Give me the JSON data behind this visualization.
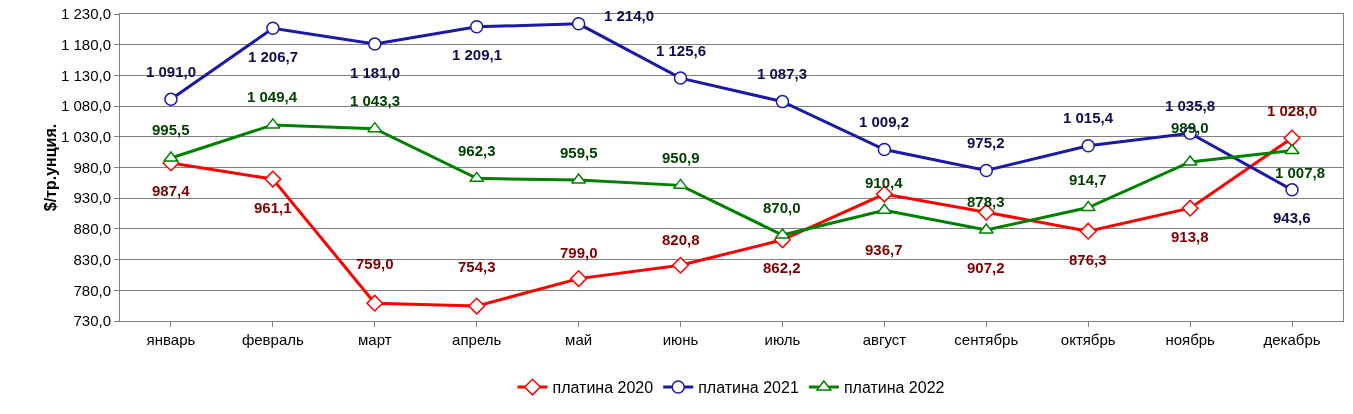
{
  "chart_data": {
    "type": "line",
    "ylabel": "$/тр.унция.",
    "categories": [
      "январь",
      "февраль",
      "март",
      "апрель",
      "май",
      "июнь",
      "июль",
      "август",
      "сентябрь",
      "октябрь",
      "ноябрь",
      "декабрь"
    ],
    "series": [
      {
        "name": "платина 2020",
        "color": "#ff0000",
        "marker": "diamond",
        "values": [
          987.4,
          961.1,
          759.0,
          754.3,
          799.0,
          820.8,
          862.2,
          936.7,
          907.2,
          876.3,
          913.8,
          1028.0
        ],
        "value_labels": [
          "987,4",
          "961,1",
          "759,0",
          "754,3",
          "799,0",
          "820,8",
          "862,2",
          "936,7",
          "907,2",
          "876,3",
          "913,8",
          "1 028,0"
        ]
      },
      {
        "name": "платина 2021",
        "color": "#1a1aa6",
        "marker": "circle",
        "values": [
          1091.0,
          1206.7,
          1181.0,
          1209.1,
          1214.0,
          1125.6,
          1087.3,
          1009.2,
          975.2,
          1015.4,
          1035.8,
          943.6
        ],
        "value_labels": [
          "1 091,0",
          "1 206,7",
          "1 181,0",
          "1 209,1",
          "1 214,0",
          "1 125,6",
          "1 087,3",
          "1 009,2",
          "975,2",
          "1 015,4",
          "1 035,8",
          "943,6"
        ]
      },
      {
        "name": "платина 2022",
        "color": "#008000",
        "marker": "triangle",
        "values": [
          995.5,
          1049.4,
          1043.3,
          962.3,
          959.5,
          950.9,
          870.0,
          910.4,
          878.3,
          914.7,
          989.0,
          1007.8
        ],
        "value_labels": [
          "995,5",
          "1 049,4",
          "1 043,3",
          "962,3",
          "959,5",
          "950,9",
          "870,0",
          "910,4",
          "878,3",
          "914,7",
          "989,0",
          "1 007,8"
        ]
      }
    ],
    "ylim": [
      730,
      1230
    ],
    "yticks": [
      {
        "value": 730,
        "label": "730,0"
      },
      {
        "value": 780,
        "label": "780,0"
      },
      {
        "value": 830,
        "label": "830,0"
      },
      {
        "value": 880,
        "label": "880,0"
      },
      {
        "value": 930,
        "label": "930,0"
      },
      {
        "value": 980,
        "label": "980,0"
      },
      {
        "value": 1030,
        "label": "1 030,0"
      },
      {
        "value": 1080,
        "label": "1 080,0"
      },
      {
        "value": 1130,
        "label": "1 130,0"
      },
      {
        "value": 1180,
        "label": "1 180,0"
      },
      {
        "value": 1230,
        "label": "1 230,0"
      }
    ],
    "grid": "y",
    "legend": "bottom",
    "line_style": "solid"
  }
}
